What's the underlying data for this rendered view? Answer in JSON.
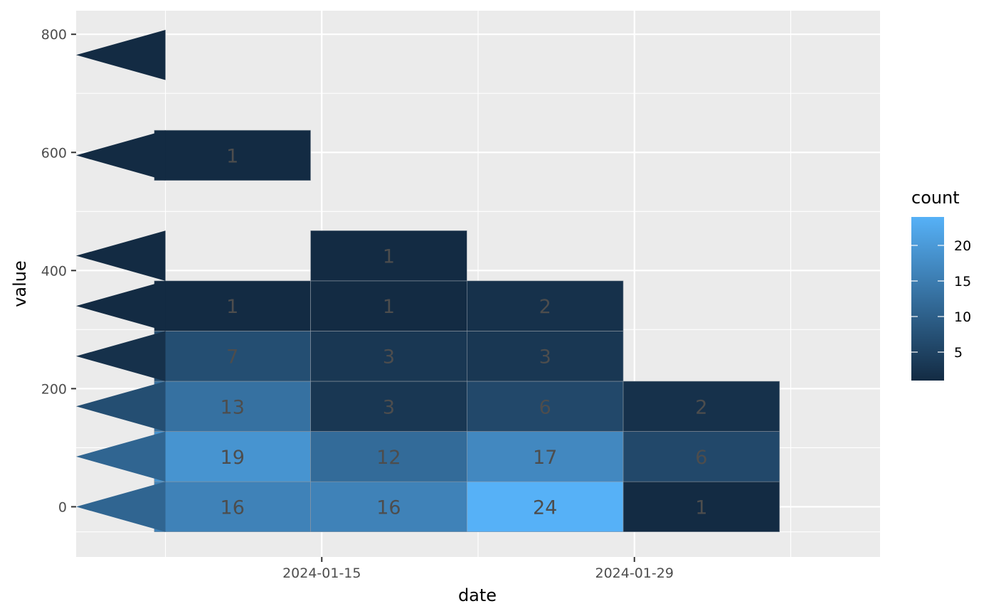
{
  "chart_data": {
    "type": "heatmap",
    "subtype": "2d-binned counts (hex-style bins)",
    "xlabel": "date",
    "ylabel": "value",
    "x_ticks": [
      "2024-01-15",
      "2024-01-29"
    ],
    "y_ticks": [
      0,
      200,
      400,
      600,
      800
    ],
    "xlim": [
      "2024-01-04",
      "2024-02-09"
    ],
    "ylim": [
      -85,
      840
    ],
    "x_bin_edges": [
      "2024-01-08",
      "2024-01-15",
      "2024-01-22",
      "2024-01-29",
      "2024-02-05"
    ],
    "y_bin_height": 85,
    "grid": true,
    "legend": {
      "title": "count",
      "position": "right",
      "type": "colorbar",
      "ticks": [
        5,
        10,
        15,
        20
      ],
      "range": [
        1,
        24
      ],
      "low_color": "#132B43",
      "high_color": "#56B1F7"
    },
    "cells": [
      {
        "x": "2024-01-11",
        "y": 0,
        "count": 16
      },
      {
        "x": "2024-01-11",
        "y": 85,
        "count": 19
      },
      {
        "x": "2024-01-11",
        "y": 170,
        "count": 13
      },
      {
        "x": "2024-01-11",
        "y": 255,
        "count": 7
      },
      {
        "x": "2024-01-11",
        "y": 340,
        "count": 1
      },
      {
        "x": "2024-01-11",
        "y": 595,
        "count": 1
      },
      {
        "x": "2024-01-18",
        "y": 0,
        "count": 16
      },
      {
        "x": "2024-01-18",
        "y": 85,
        "count": 12
      },
      {
        "x": "2024-01-18",
        "y": 170,
        "count": 3
      },
      {
        "x": "2024-01-18",
        "y": 255,
        "count": 3
      },
      {
        "x": "2024-01-18",
        "y": 340,
        "count": 1
      },
      {
        "x": "2024-01-18",
        "y": 425,
        "count": 1
      },
      {
        "x": "2024-01-25",
        "y": 0,
        "count": 24
      },
      {
        "x": "2024-01-25",
        "y": 85,
        "count": 17
      },
      {
        "x": "2024-01-25",
        "y": 170,
        "count": 6
      },
      {
        "x": "2024-01-25",
        "y": 255,
        "count": 3
      },
      {
        "x": "2024-01-25",
        "y": 340,
        "count": 2
      },
      {
        "x": "2024-02-01",
        "y": 0,
        "count": 1
      },
      {
        "x": "2024-02-01",
        "y": 85,
        "count": 6
      },
      {
        "x": "2024-02-01",
        "y": 170,
        "count": 2
      }
    ],
    "edge_wedges": [
      {
        "y": 0,
        "count": 11
      },
      {
        "y": 85,
        "count": 11
      },
      {
        "y": 170,
        "count": 7
      },
      {
        "y": 255,
        "count": 2
      },
      {
        "y": 340,
        "count": 1
      },
      {
        "y": 425,
        "count": 1
      },
      {
        "y": 595,
        "count": 1
      },
      {
        "y": 765,
        "count": 1
      }
    ]
  }
}
